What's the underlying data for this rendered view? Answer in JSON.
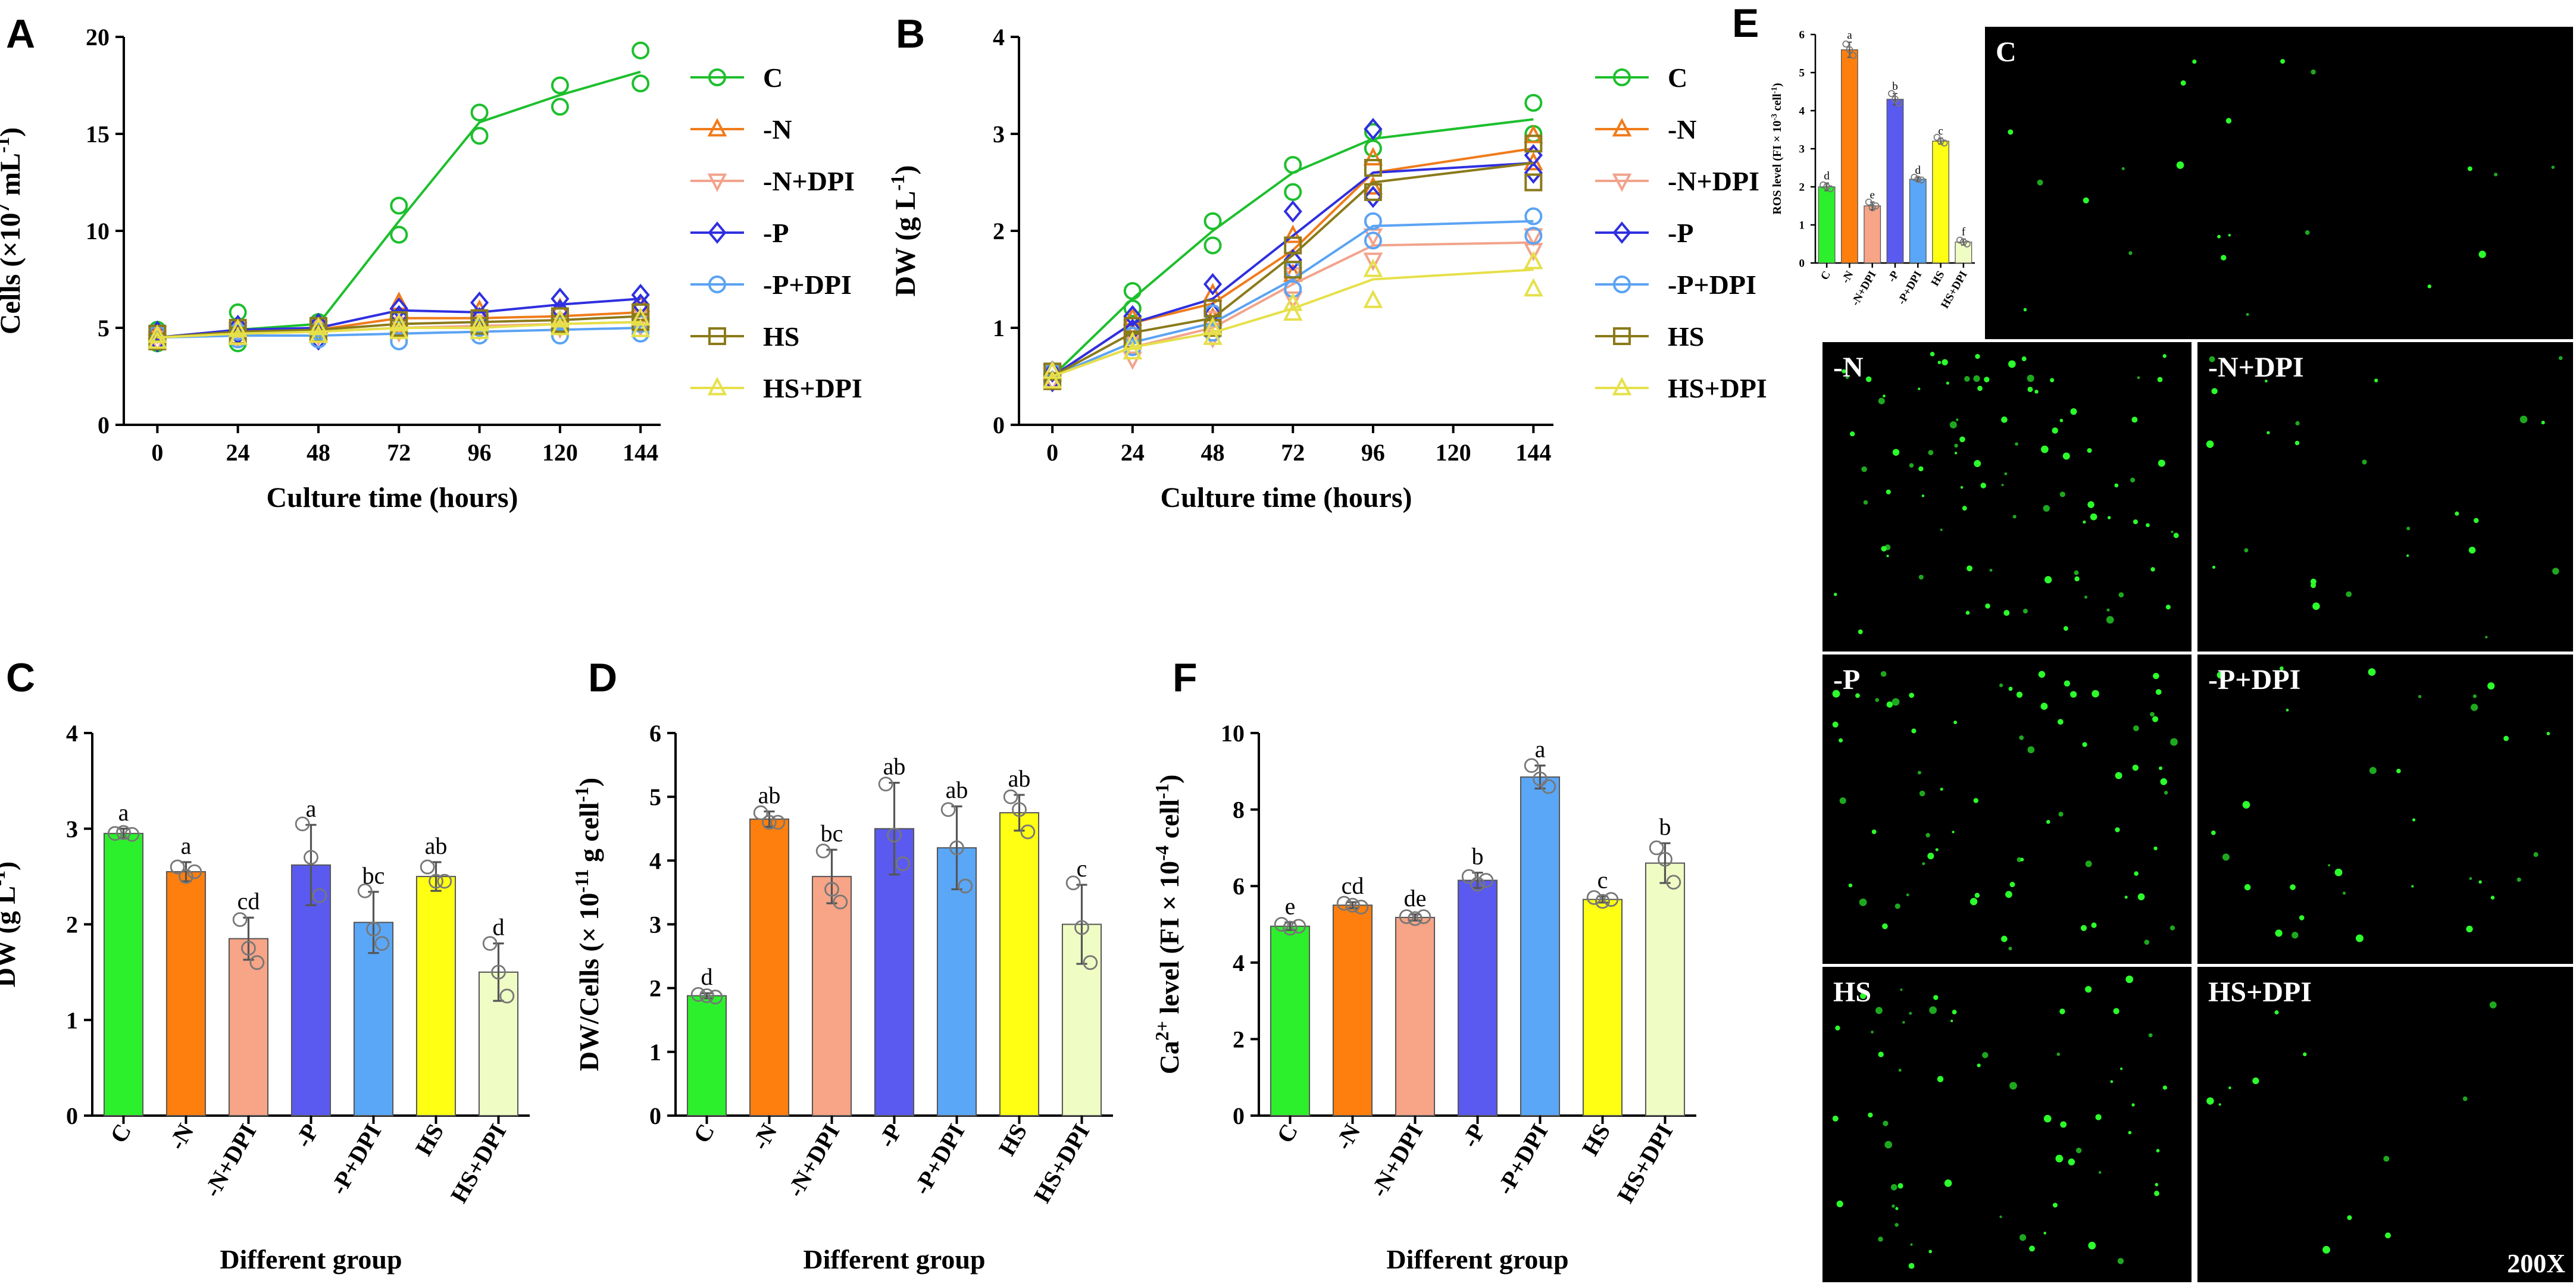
{
  "panel_labels": [
    "A",
    "B",
    "C",
    "D",
    "E",
    "F"
  ],
  "legend_series": [
    "C",
    "-N",
    "-N+DPI",
    "-P",
    "-P+DPI",
    "HS",
    "HS+DPI"
  ],
  "colors": {
    "C": "#1dbf2d",
    "-N": "#f07b1a",
    "-N+DPI": "#f2a38c",
    "-P": "#2f2fe0",
    "-P+DPI": "#5ba3f4",
    "HS": "#8a7a1a",
    "HS+DPI": "#e6e04a"
  },
  "bar_colors": {
    "C": "#2cf02c",
    "-N": "#ff7f0e",
    "-N+DPI": "#f7a487",
    "-P": "#5a5af0",
    "-P+DPI": "#5aa7f7",
    "HS": "#ffff14",
    "HS+DPI": "#effcc4"
  },
  "micrograph": {
    "labels": [
      "C",
      "-N",
      "-N+DPI",
      "-P",
      "-P+DPI",
      "HS",
      "HS+DPI"
    ],
    "magnification": "200X"
  },
  "chart_data": [
    {
      "id": "A",
      "type": "line",
      "title": "",
      "xlabel": "Culture time (hours)",
      "ylabel": "Cells (×10⁷ mL⁻¹)",
      "ylabel_parts": [
        "Cells (×10",
        "7",
        " mL",
        "-1",
        ")"
      ],
      "x": [
        0,
        24,
        48,
        72,
        96,
        120,
        144
      ],
      "xticks": [
        "0",
        "24",
        "48",
        "72",
        "96",
        "120",
        "144"
      ],
      "yticks": [
        "0",
        "5",
        "10",
        "15",
        "20"
      ],
      "ylim": [
        0,
        20
      ],
      "xlim": [
        -10,
        150
      ],
      "series": [
        {
          "name": "C",
          "marker": "circle",
          "values": [
            4.5,
            4.9,
            5.2,
            10.5,
            15.6,
            17.0,
            18.2
          ],
          "points": [
            4.9,
            4.2,
            5.8,
            4.2,
            5.3,
            4.9,
            11.3,
            9.8,
            16.1,
            14.9,
            17.5,
            16.4,
            19.3,
            17.6
          ]
        },
        {
          "name": "-N",
          "marker": "triangle",
          "values": [
            4.5,
            4.8,
            4.9,
            5.5,
            5.5,
            5.6,
            5.8
          ],
          "points": [
            4.8,
            4.3,
            5.1,
            4.5,
            5.1,
            4.6,
            6.3,
            5.1,
            5.9,
            5.2,
            6.0,
            5.3,
            6.2,
            5.4
          ]
        },
        {
          "name": "-N+DPI",
          "marker": "triangle-down",
          "values": [
            4.5,
            4.7,
            4.8,
            5.0,
            5.1,
            5.2,
            5.3
          ],
          "points": [
            4.7,
            4.3,
            4.9,
            4.5,
            5.0,
            4.6,
            5.2,
            4.8,
            5.3,
            4.9,
            5.4,
            5.0,
            5.5,
            5.1
          ]
        },
        {
          "name": "-P",
          "marker": "diamond",
          "values": [
            4.5,
            4.9,
            5.0,
            5.9,
            5.8,
            6.2,
            6.5
          ],
          "points": [
            4.8,
            4.3,
            5.1,
            4.7,
            5.2,
            4.4,
            6.0,
            5.6,
            6.3,
            5.5,
            6.5,
            5.9,
            6.7,
            6.2
          ]
        },
        {
          "name": "-P+DPI",
          "marker": "circle",
          "values": [
            4.5,
            4.6,
            4.6,
            4.7,
            4.8,
            4.9,
            5.0
          ],
          "points": [
            4.7,
            4.3,
            4.8,
            4.4,
            4.8,
            4.4,
            4.9,
            4.3,
            5.0,
            4.6,
            5.1,
            4.6,
            5.2,
            4.7
          ]
        },
        {
          "name": "HS",
          "marker": "square",
          "values": [
            4.5,
            4.8,
            4.9,
            5.2,
            5.3,
            5.4,
            5.6
          ],
          "points": [
            4.7,
            4.3,
            5.0,
            4.6,
            5.1,
            4.7,
            5.4,
            5.0,
            5.5,
            5.1,
            5.6,
            5.2,
            5.8,
            5.3
          ]
        },
        {
          "name": "HS+DPI",
          "marker": "triangle",
          "values": [
            4.5,
            4.7,
            4.8,
            5.0,
            5.0,
            5.2,
            5.3
          ],
          "points": [
            4.6,
            4.3,
            4.9,
            4.5,
            5.0,
            4.6,
            5.2,
            4.8,
            5.2,
            4.8,
            5.4,
            5.0,
            5.5,
            4.9
          ]
        }
      ],
      "legend": [
        "C",
        "-N",
        "-N+DPI",
        "-P",
        "-P+DPI",
        "HS",
        "HS+DPI"
      ]
    },
    {
      "id": "B",
      "type": "line",
      "title": "",
      "xlabel": "Culture time (hours)",
      "ylabel": "DW (g L⁻¹)",
      "ylabel_parts": [
        "DW (g L",
        "-1",
        ")",
        "",
        ""
      ],
      "x": [
        0,
        24,
        48,
        72,
        96,
        144
      ],
      "xticks": [
        "0",
        "24",
        "48",
        "72",
        "96",
        "120",
        "144"
      ],
      "xtick_values": [
        0,
        24,
        48,
        72,
        96,
        120,
        144
      ],
      "yticks": [
        "0",
        "1",
        "2",
        "3",
        "4"
      ],
      "ylim": [
        0,
        4
      ],
      "xlim": [
        -10,
        150
      ],
      "series": [
        {
          "name": "C",
          "marker": "circle",
          "values": [
            0.5,
            1.3,
            2.0,
            2.6,
            2.95,
            3.15
          ],
          "points": [
            0.55,
            0.45,
            1.38,
            1.2,
            2.1,
            1.85,
            2.68,
            2.4,
            3.02,
            2.85,
            3.32,
            3.0
          ]
        },
        {
          "name": "-N",
          "marker": "triangle",
          "values": [
            0.5,
            1.05,
            1.25,
            1.8,
            2.6,
            2.85
          ],
          "points": [
            0.55,
            0.45,
            1.1,
            0.95,
            1.35,
            1.1,
            1.95,
            1.55,
            2.75,
            2.45,
            2.98,
            2.7
          ]
        },
        {
          "name": "-N+DPI",
          "marker": "triangle-down",
          "values": [
            0.5,
            0.8,
            1.0,
            1.45,
            1.85,
            1.88
          ],
          "points": [
            0.55,
            0.45,
            0.9,
            0.68,
            1.1,
            0.9,
            1.55,
            1.3,
            1.95,
            1.7,
            1.95,
            1.8
          ]
        },
        {
          "name": "-P",
          "marker": "diamond",
          "values": [
            0.5,
            1.05,
            1.3,
            1.95,
            2.6,
            2.7
          ],
          "points": [
            0.55,
            0.45,
            1.12,
            0.98,
            1.45,
            1.15,
            2.2,
            1.7,
            3.05,
            2.35,
            2.78,
            2.6
          ]
        },
        {
          "name": "-P+DPI",
          "marker": "circle",
          "values": [
            0.5,
            0.85,
            1.05,
            1.5,
            2.05,
            2.1
          ],
          "points": [
            0.55,
            0.45,
            0.92,
            0.8,
            1.15,
            0.95,
            1.6,
            1.4,
            2.1,
            1.9,
            2.15,
            1.95
          ]
        },
        {
          "name": "HS",
          "marker": "square",
          "values": [
            0.5,
            0.95,
            1.1,
            1.75,
            2.5,
            2.7
          ],
          "points": [
            0.55,
            0.45,
            1.02,
            0.88,
            1.2,
            1.0,
            1.85,
            1.6,
            2.65,
            2.4,
            2.9,
            2.5
          ]
        },
        {
          "name": "HS+DPI",
          "marker": "triangle",
          "values": [
            0.5,
            0.8,
            0.95,
            1.2,
            1.5,
            1.6
          ],
          "points": [
            0.55,
            0.45,
            0.85,
            0.75,
            1.0,
            0.9,
            1.25,
            1.15,
            1.6,
            1.28,
            1.68,
            1.4
          ]
        }
      ],
      "legend": [
        "C",
        "-N",
        "-N+DPI",
        "-P",
        "-P+DPI",
        "HS",
        "HS+DPI"
      ]
    },
    {
      "id": "C",
      "type": "bar",
      "title": "",
      "xlabel": "Different group",
      "ylabel": "DW (g L⁻¹)",
      "ylabel_parts": [
        "DW (g L",
        "-1",
        ")",
        "",
        ""
      ],
      "categories": [
        "C",
        "-N",
        "-N+DPI",
        "-P",
        "-P+DPI",
        "HS",
        "HS+DPI"
      ],
      "values": [
        2.95,
        2.55,
        1.85,
        2.62,
        2.02,
        2.5,
        1.5
      ],
      "errors": [
        0.05,
        0.1,
        0.22,
        0.42,
        0.32,
        0.15,
        0.3
      ],
      "points": [
        [
          2.95,
          2.96,
          2.94
        ],
        [
          2.6,
          2.5,
          2.55
        ],
        [
          2.05,
          1.75,
          1.6
        ],
        [
          3.05,
          2.7,
          2.3
        ],
        [
          2.35,
          1.95,
          1.8
        ],
        [
          2.6,
          2.45,
          2.45
        ],
        [
          1.8,
          1.5,
          1.25
        ]
      ],
      "letters": [
        "a",
        "a",
        "cd",
        "a",
        "bc",
        "ab",
        "d"
      ],
      "yticks": [
        "0",
        "1",
        "2",
        "3",
        "4"
      ],
      "ylim": [
        0,
        4
      ]
    },
    {
      "id": "D",
      "type": "bar",
      "title": "",
      "xlabel": "Different group",
      "ylabel": "DW/Cells (× 10⁻¹¹ g cell⁻¹)",
      "ylabel_parts": [
        "DW/Cells (× 10",
        "-11",
        " g cell",
        "-1",
        ")"
      ],
      "categories": [
        "C",
        "-N",
        "-N+DPI",
        "-P",
        "-P+DPI",
        "HS",
        "HS+DPI"
      ],
      "values": [
        1.88,
        4.65,
        3.75,
        4.5,
        4.2,
        4.75,
        3.0
      ],
      "errors": [
        0.04,
        0.12,
        0.42,
        0.72,
        0.65,
        0.28,
        0.62
      ],
      "points": [
        [
          1.9,
          1.88,
          1.86
        ],
        [
          4.75,
          4.6,
          4.6
        ],
        [
          4.15,
          3.55,
          3.35
        ],
        [
          5.2,
          4.4,
          3.95
        ],
        [
          4.8,
          4.2,
          3.6
        ],
        [
          5.0,
          4.8,
          4.45
        ],
        [
          3.65,
          2.95,
          2.4
        ]
      ],
      "letters": [
        "d",
        "ab",
        "bc",
        "ab",
        "ab",
        "ab",
        "c"
      ],
      "yticks": [
        "0",
        "1",
        "2",
        "3",
        "4",
        "5",
        "6"
      ],
      "ylim": [
        0,
        6
      ]
    },
    {
      "id": "F",
      "type": "bar",
      "title": "",
      "xlabel": "Different group",
      "ylabel": "Ca²⁺ level (FI × 10⁻⁴ cell⁻¹)",
      "ylabel_parts": [
        "Ca",
        "2+",
        " level (FI × 10",
        "-4",
        " cell",
        "-1",
        ")"
      ],
      "categories": [
        "C",
        "-N",
        "-N+DPI",
        "-P",
        "-P+DPI",
        "HS",
        "HS+DPI"
      ],
      "values": [
        4.95,
        5.5,
        5.18,
        6.15,
        8.85,
        5.65,
        6.6
      ],
      "errors": [
        0.1,
        0.08,
        0.08,
        0.2,
        0.3,
        0.08,
        0.52
      ],
      "points": [
        [
          5.0,
          4.9,
          4.95
        ],
        [
          5.55,
          5.5,
          5.45
        ],
        [
          5.2,
          5.15,
          5.2
        ],
        [
          6.25,
          6.05,
          6.15
        ],
        [
          9.15,
          8.8,
          8.6
        ],
        [
          5.7,
          5.6,
          5.65
        ],
        [
          7.0,
          6.7,
          6.1
        ]
      ],
      "letters": [
        "e",
        "cd",
        "de",
        "b",
        "a",
        "c",
        "b"
      ],
      "yticks": [
        "0",
        "2",
        "4",
        "6",
        "8",
        "10"
      ],
      "ylim": [
        0,
        10
      ]
    },
    {
      "id": "E",
      "type": "bar",
      "title": "",
      "xlabel": "",
      "ylabel": "ROS level (FI × 10⁻³ cell⁻¹)",
      "ylabel_parts": [
        "ROS level (FI × 10",
        "-3",
        " cell",
        "-1",
        ")"
      ],
      "categories": [
        "C",
        "-N",
        "-N+DPI",
        "-P",
        "-P+DPI",
        "HS",
        "HS+DPI"
      ],
      "values": [
        2.0,
        5.6,
        1.5,
        4.3,
        2.2,
        3.2,
        0.55
      ],
      "errors": [
        0.1,
        0.2,
        0.1,
        0.15,
        0.05,
        0.08,
        0.08
      ],
      "points": [
        [
          2.05,
          2.0,
          1.95
        ],
        [
          5.75,
          5.6,
          5.45
        ],
        [
          1.6,
          1.45,
          1.5
        ],
        [
          4.45,
          4.3,
          4.2
        ],
        [
          2.25,
          2.2,
          2.18
        ],
        [
          3.3,
          3.2,
          3.15
        ],
        [
          0.6,
          0.55,
          0.5
        ]
      ],
      "letters": [
        "d",
        "a",
        "e",
        "b",
        "d",
        "c",
        "f"
      ],
      "yticks": [
        "0",
        "1",
        "2",
        "3",
        "4",
        "5",
        "6"
      ],
      "ylim": [
        0,
        6
      ]
    }
  ]
}
